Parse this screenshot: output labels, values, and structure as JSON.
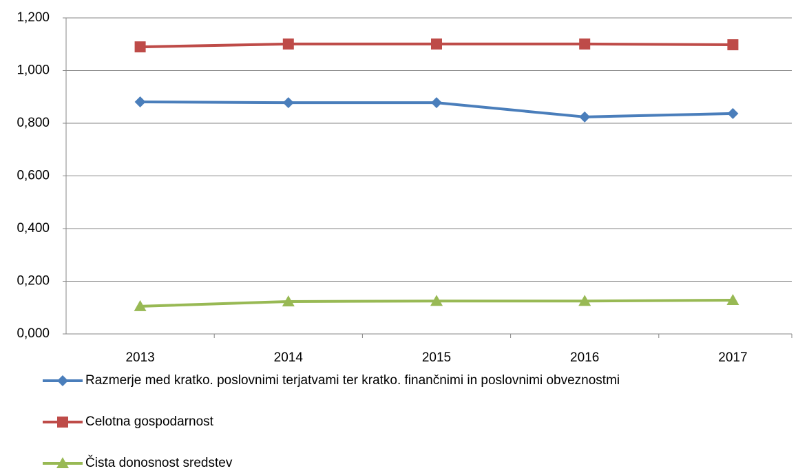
{
  "chart_data": {
    "type": "line",
    "categories": [
      "2013",
      "2014",
      "2015",
      "2016",
      "2017"
    ],
    "series": [
      {
        "name": "Razmerje med kratko. poslovnimi terjatvami ter kratko. finančnimi in poslovnimi obveznostmi",
        "color": "#4a7ebb",
        "marker": "diamond",
        "values": [
          0.881,
          0.878,
          0.878,
          0.824,
          0.837
        ]
      },
      {
        "name": "Celotna gospodarnost",
        "color": "#be4b48",
        "marker": "square",
        "values": [
          1.09,
          1.101,
          1.101,
          1.101,
          1.098
        ]
      },
      {
        "name": "Čista donosnost sredstev",
        "color": "#98b954",
        "marker": "triangle",
        "values": [
          0.105,
          0.123,
          0.125,
          0.125,
          0.128
        ]
      }
    ],
    "ylim": [
      0,
      1.2
    ],
    "yticks": [
      {
        "value": 0,
        "label": "0,000"
      },
      {
        "value": 0.2,
        "label": "0,200"
      },
      {
        "value": 0.4,
        "label": "0,400"
      },
      {
        "value": 0.6,
        "label": "0,600"
      },
      {
        "value": 0.8,
        "label": "0,800"
      },
      {
        "value": 1.0,
        "label": "1,000"
      },
      {
        "value": 1.2,
        "label": "1,200"
      }
    ],
    "grid": true,
    "legend": "bottom"
  }
}
